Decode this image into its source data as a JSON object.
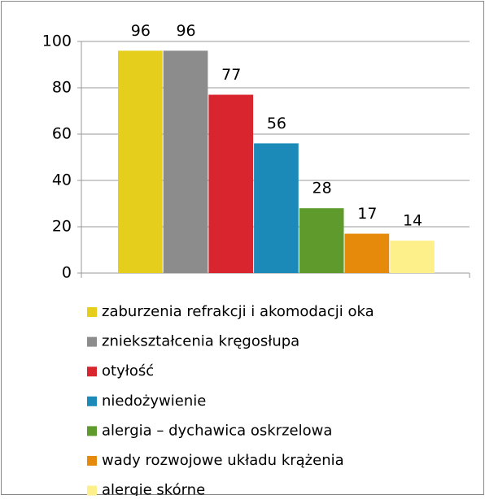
{
  "chart_data": {
    "type": "bar",
    "series": [
      {
        "name": "zaburzenia refrakcji i akomodacji oka",
        "color": "#e5cf1c",
        "values": [
          96
        ]
      },
      {
        "name": "zniekształcenia kręgosłupa",
        "color": "#8c8c8c",
        "values": [
          96
        ]
      },
      {
        "name": "otyłość",
        "color": "#d9262e",
        "values": [
          77
        ]
      },
      {
        "name": "niedożywienie",
        "color": "#1b8ab8",
        "values": [
          56
        ]
      },
      {
        "name": "alergia – dychawica oskrzelowa",
        "color": "#5f9a2d",
        "values": [
          28
        ]
      },
      {
        "name": "wady rozwojowe układu krążenia",
        "color": "#e68a0c",
        "values": [
          17
        ]
      },
      {
        "name": "alergie skórne",
        "color": "#fdf08a",
        "values": [
          14
        ]
      }
    ],
    "ylim": [
      0,
      100
    ],
    "yticks": [
      0,
      20,
      40,
      60,
      80,
      100
    ],
    "grid": true,
    "legend": "bottom"
  }
}
